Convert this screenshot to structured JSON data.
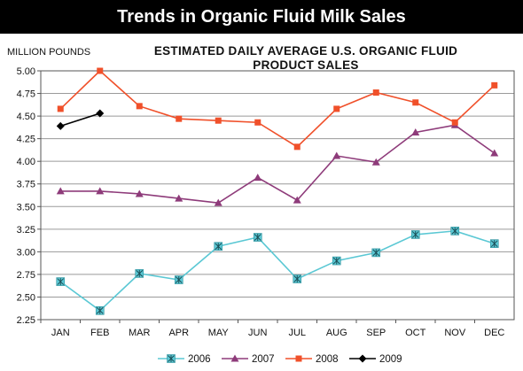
{
  "banner": {
    "title": "Trends in Organic Fluid Milk Sales"
  },
  "chart_data": {
    "type": "line",
    "title_lines": [
      "ESTIMATED DAILY AVERAGE U.S. ORGANIC FLUID",
      "PRODUCT SALES"
    ],
    "ylabel": "MILLION POUNDS",
    "xlabel": "",
    "categories": [
      "JAN",
      "FEB",
      "MAR",
      "APR",
      "MAY",
      "JUN",
      "JUL",
      "AUG",
      "SEP",
      "OCT",
      "NOV",
      "DEC"
    ],
    "ylim": [
      2.25,
      5.0
    ],
    "yticks": [
      "2.25",
      "2.50",
      "2.75",
      "3.00",
      "3.25",
      "3.50",
      "3.75",
      "4.00",
      "4.25",
      "4.50",
      "4.75",
      "5.00"
    ],
    "grid": "horizontal",
    "legend_position": "bottom",
    "series": [
      {
        "name": "2006",
        "color": "#5bc8d4",
        "marker": "asterisk-square",
        "values": [
          2.67,
          2.35,
          2.76,
          2.69,
          3.06,
          3.16,
          2.7,
          2.9,
          2.99,
          3.19,
          3.23,
          3.09
        ]
      },
      {
        "name": "2007",
        "color": "#8e3b7a",
        "marker": "triangle",
        "values": [
          3.67,
          3.67,
          3.64,
          3.59,
          3.54,
          3.82,
          3.57,
          4.06,
          3.99,
          4.32,
          4.4,
          4.09
        ]
      },
      {
        "name": "2008",
        "color": "#f0502a",
        "marker": "square",
        "values": [
          4.58,
          5.0,
          4.61,
          4.47,
          4.45,
          4.43,
          4.16,
          4.58,
          4.76,
          4.65,
          4.43,
          4.84
        ]
      },
      {
        "name": "2009",
        "color": "#000000",
        "marker": "diamond",
        "values": [
          4.39,
          4.53,
          null,
          null,
          null,
          null,
          null,
          null,
          null,
          null,
          null,
          null
        ]
      }
    ]
  }
}
